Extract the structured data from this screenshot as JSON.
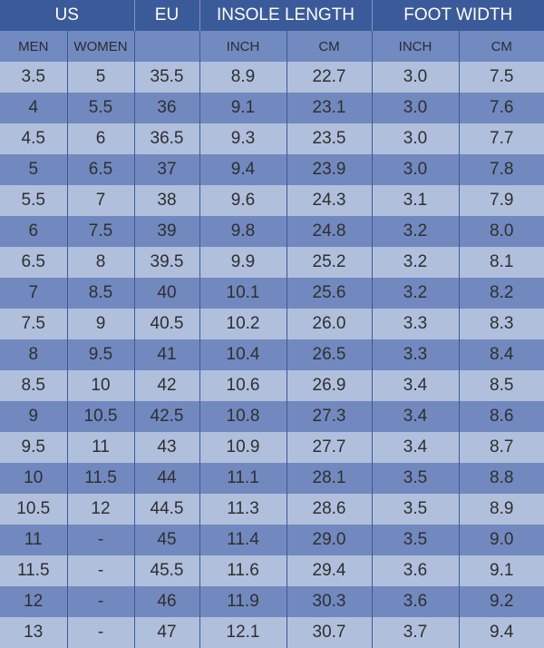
{
  "header": {
    "groups": [
      "US",
      "EU",
      "INSOLE LENGTH",
      "FOOT WIDTH"
    ],
    "sub": [
      "MEN",
      "WOMEN",
      "",
      "INCH",
      "CM",
      "INCH",
      "CM"
    ]
  },
  "colors": {
    "header": "#3a5a9a",
    "subheader": "#718ac0",
    "row_light": "#b0bfdc",
    "row_dark": "#7189bf"
  },
  "rows": [
    [
      "3.5",
      "5",
      "35.5",
      "8.9",
      "22.7",
      "3.0",
      "7.5"
    ],
    [
      "4",
      "5.5",
      "36",
      "9.1",
      "23.1",
      "3.0",
      "7.6"
    ],
    [
      "4.5",
      "6",
      "36.5",
      "9.3",
      "23.5",
      "3.0",
      "7.7"
    ],
    [
      "5",
      "6.5",
      "37",
      "9.4",
      "23.9",
      "3.0",
      "7.8"
    ],
    [
      "5.5",
      "7",
      "38",
      "9.6",
      "24.3",
      "3.1",
      "7.9"
    ],
    [
      "6",
      "7.5",
      "39",
      "9.8",
      "24.8",
      "3.2",
      "8.0"
    ],
    [
      "6.5",
      "8",
      "39.5",
      "9.9",
      "25.2",
      "3.2",
      "8.1"
    ],
    [
      "7",
      "8.5",
      "40",
      "10.1",
      "25.6",
      "3.2",
      "8.2"
    ],
    [
      "7.5",
      "9",
      "40.5",
      "10.2",
      "26.0",
      "3.3",
      "8.3"
    ],
    [
      "8",
      "9.5",
      "41",
      "10.4",
      "26.5",
      "3.3",
      "8.4"
    ],
    [
      "8.5",
      "10",
      "42",
      "10.6",
      "26.9",
      "3.4",
      "8.5"
    ],
    [
      "9",
      "10.5",
      "42.5",
      "10.8",
      "27.3",
      "3.4",
      "8.6"
    ],
    [
      "9.5",
      "11",
      "43",
      "10.9",
      "27.7",
      "3.4",
      "8.7"
    ],
    [
      "10",
      "11.5",
      "44",
      "11.1",
      "28.1",
      "3.5",
      "8.8"
    ],
    [
      "10.5",
      "12",
      "44.5",
      "11.3",
      "28.6",
      "3.5",
      "8.9"
    ],
    [
      "11",
      "-",
      "45",
      "11.4",
      "29.0",
      "3.5",
      "9.0"
    ],
    [
      "11.5",
      "-",
      "45.5",
      "11.6",
      "29.4",
      "3.6",
      "9.1"
    ],
    [
      "12",
      "-",
      "46",
      "11.9",
      "30.3",
      "3.6",
      "9.2"
    ],
    [
      "13",
      "-",
      "47",
      "12.1",
      "30.7",
      "3.7",
      "9.4"
    ]
  ]
}
